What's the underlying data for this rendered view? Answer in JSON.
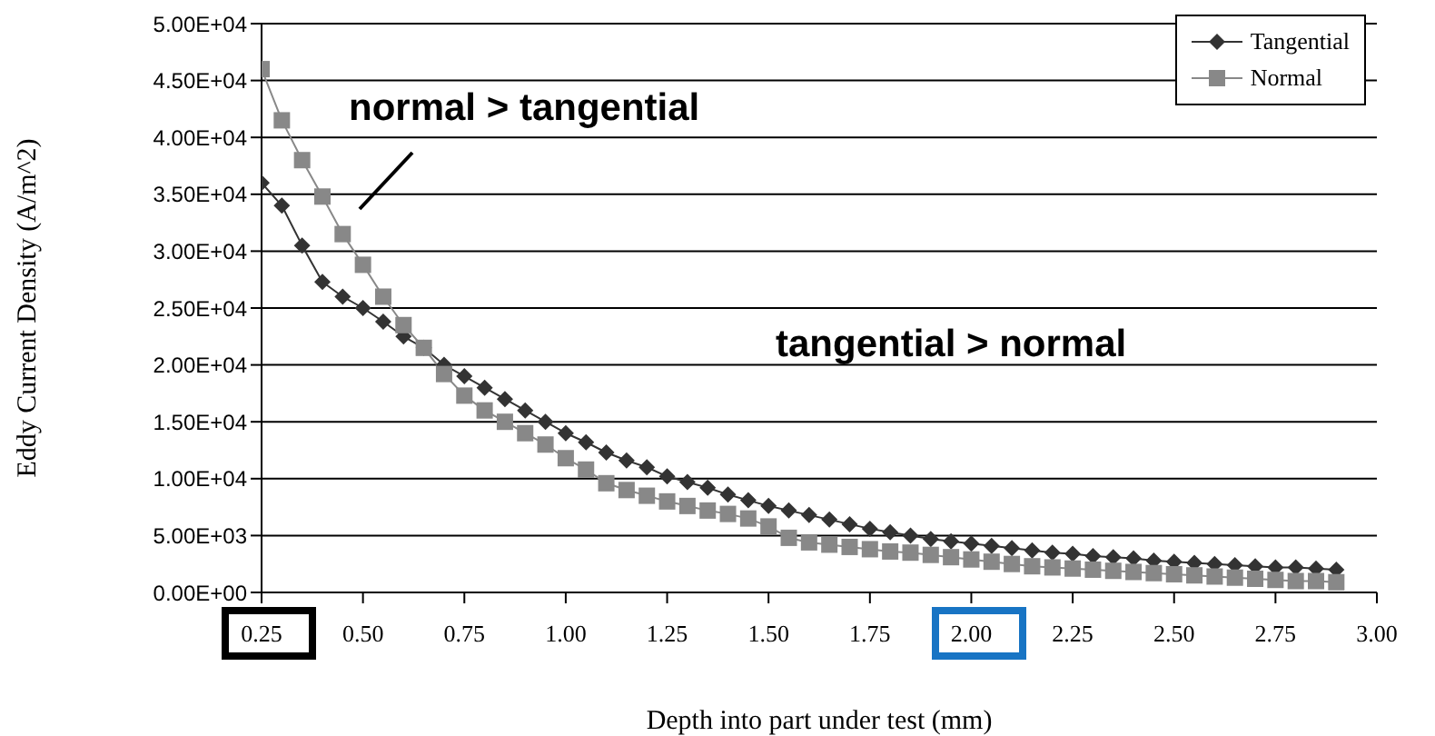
{
  "chart_data": {
    "type": "line",
    "xlabel": "Depth into part under test (mm)",
    "ylabel": "Eddy Current Density (A/m^2)",
    "x": [
      0.25,
      0.3,
      0.35,
      0.4,
      0.45,
      0.5,
      0.55,
      0.6,
      0.65,
      0.7,
      0.75,
      0.8,
      0.85,
      0.9,
      0.95,
      1.0,
      1.05,
      1.1,
      1.15,
      1.2,
      1.25,
      1.3,
      1.35,
      1.4,
      1.45,
      1.5,
      1.55,
      1.6,
      1.65,
      1.7,
      1.75,
      1.8,
      1.85,
      1.9,
      1.95,
      2.0,
      2.05,
      2.1,
      2.15,
      2.2,
      2.25,
      2.3,
      2.35,
      2.4,
      2.45,
      2.5,
      2.55,
      2.6,
      2.65,
      2.7,
      2.75,
      2.8,
      2.85,
      2.9
    ],
    "series": [
      {
        "name": "Tangential",
        "color": "#333333",
        "marker": "diamond",
        "values": [
          36000,
          34000,
          30500,
          27300,
          26000,
          25000,
          23800,
          22500,
          21500,
          20000,
          19000,
          18000,
          17000,
          16000,
          15000,
          14000,
          13200,
          12300,
          11600,
          11000,
          10200,
          9700,
          9200,
          8600,
          8100,
          7600,
          7200,
          6800,
          6400,
          6000,
          5600,
          5300,
          5000,
          4700,
          4500,
          4300,
          4100,
          3900,
          3700,
          3500,
          3400,
          3200,
          3100,
          3000,
          2800,
          2700,
          2600,
          2500,
          2400,
          2300,
          2200,
          2200,
          2100,
          2000
        ]
      },
      {
        "name": "Normal",
        "color": "#888888",
        "marker": "square",
        "values": [
          46000,
          41500,
          38000,
          34800,
          31500,
          28800,
          26000,
          23500,
          21500,
          19200,
          17300,
          16000,
          15000,
          14000,
          13000,
          11800,
          10800,
          9600,
          9000,
          8500,
          8000,
          7600,
          7200,
          6900,
          6500,
          5800,
          4800,
          4400,
          4200,
          4000,
          3800,
          3600,
          3500,
          3300,
          3100,
          2900,
          2700,
          2500,
          2300,
          2200,
          2100,
          2000,
          1900,
          1800,
          1700,
          1600,
          1500,
          1400,
          1300,
          1200,
          1100,
          1000,
          1000,
          900
        ]
      }
    ],
    "xlim": [
      0.25,
      3.0
    ],
    "xticks": [
      {
        "value": 0.25,
        "label": "0.25"
      },
      {
        "value": 0.5,
        "label": "0.50"
      },
      {
        "value": 0.75,
        "label": "0.75"
      },
      {
        "value": 1.0,
        "label": "1.00"
      },
      {
        "value": 1.25,
        "label": "1.25"
      },
      {
        "value": 1.5,
        "label": "1.50"
      },
      {
        "value": 1.75,
        "label": "1.75"
      },
      {
        "value": 2.0,
        "label": "2.00"
      },
      {
        "value": 2.25,
        "label": "2.25"
      },
      {
        "value": 2.5,
        "label": "2.50"
      },
      {
        "value": 2.75,
        "label": "2.75"
      },
      {
        "value": 3.0,
        "label": "3.00"
      }
    ],
    "ylim": [
      0,
      50000
    ],
    "yticks": [
      {
        "value": 0,
        "label": "0.00E+00"
      },
      {
        "value": 5000,
        "label": "5.00E+03"
      },
      {
        "value": 10000,
        "label": "1.00E+04"
      },
      {
        "value": 15000,
        "label": "1.50E+04"
      },
      {
        "value": 20000,
        "label": "2.00E+04"
      },
      {
        "value": 25000,
        "label": "2.50E+04"
      },
      {
        "value": 30000,
        "label": "3.00E+04"
      },
      {
        "value": 35000,
        "label": "3.50E+04"
      },
      {
        "value": 40000,
        "label": "4.00E+04"
      },
      {
        "value": 45000,
        "label": "4.50E+04"
      },
      {
        "value": 50000,
        "label": "5.00E+04"
      }
    ],
    "grid": "y",
    "legend": "top right",
    "annotations": [
      "normal > tangential",
      "tangential > normal"
    ]
  }
}
